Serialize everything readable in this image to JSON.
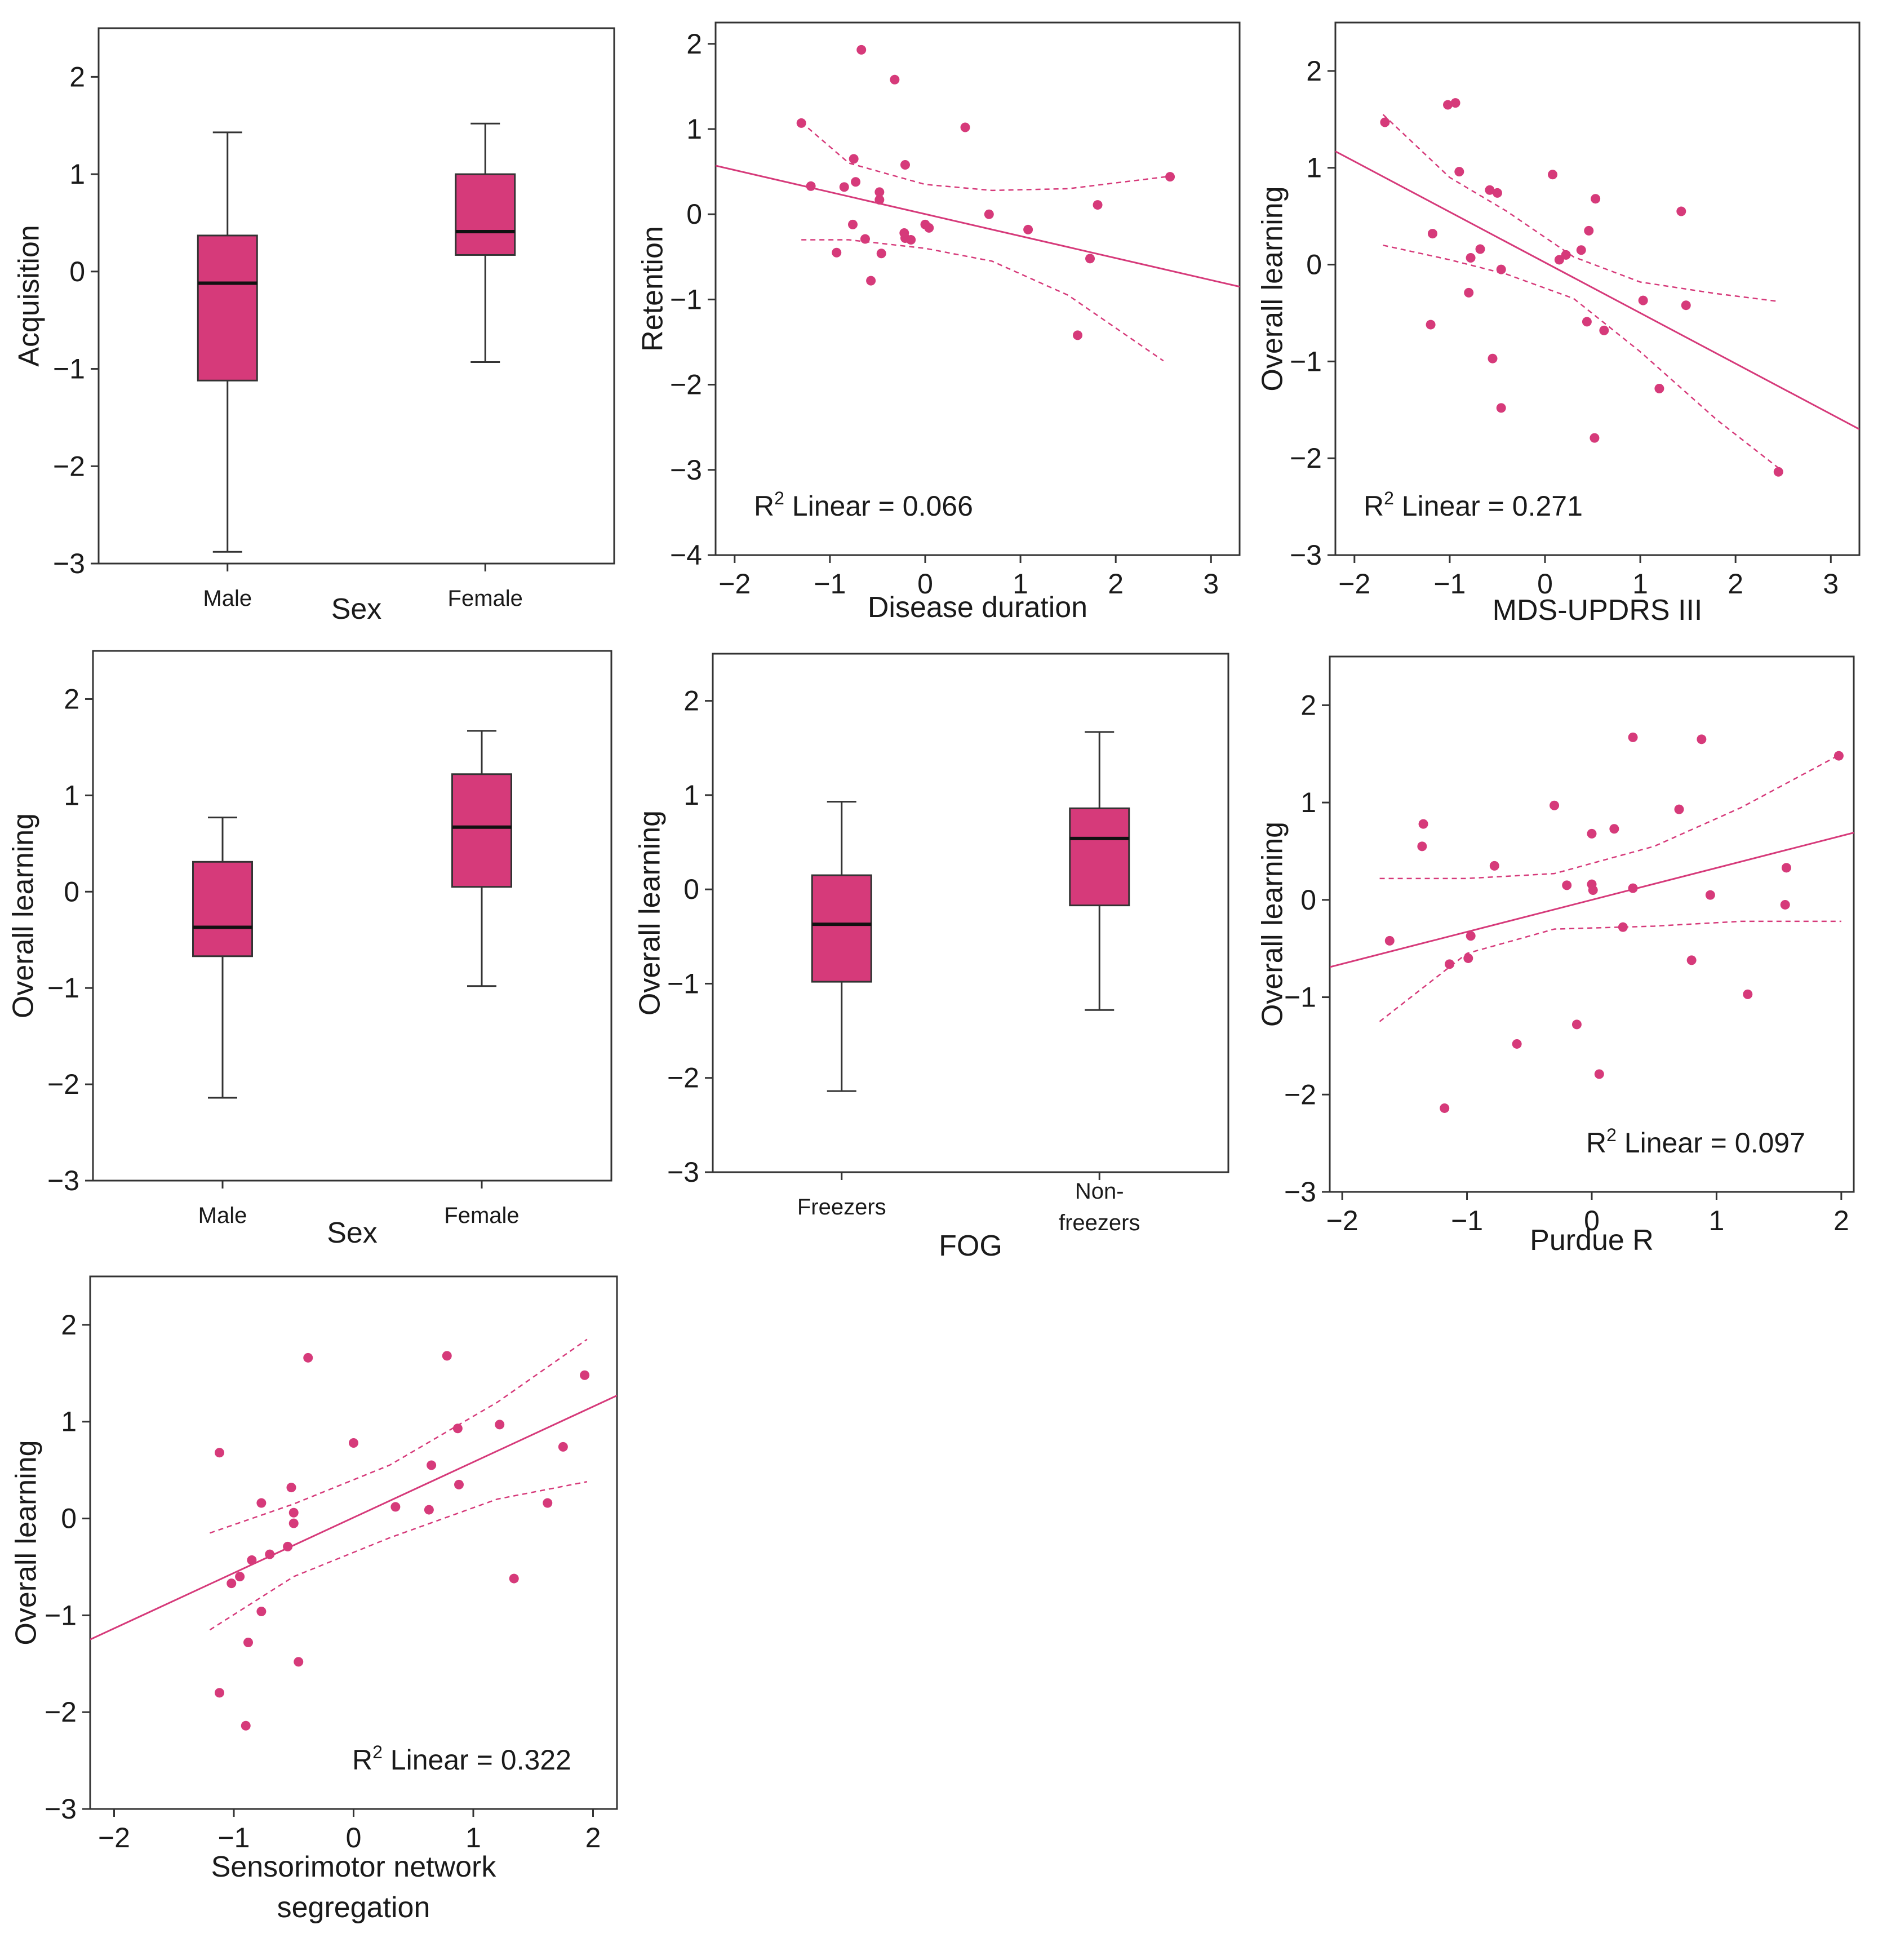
{
  "colors": {
    "accent": "#d63a7a",
    "box_fill": "#d63a7a",
    "stroke": "#333333"
  },
  "chart_data": [
    {
      "id": "p1",
      "type": "box",
      "categories": [
        "Male",
        "Female"
      ],
      "xlabel": "Sex",
      "ylabel": "Acquisition",
      "ylim": [
        -3,
        2.5
      ],
      "yticks": [
        -3,
        -2,
        -1,
        0,
        1,
        2
      ],
      "boxes": [
        {
          "whisker_low": -2.88,
          "q1": -1.12,
          "median": -0.12,
          "q3": 0.37,
          "whisker_high": 1.43
        },
        {
          "whisker_low": -0.93,
          "q1": 0.17,
          "median": 0.41,
          "q3": 1.0,
          "whisker_high": 1.52
        }
      ]
    },
    {
      "id": "p2",
      "type": "scatter",
      "xlabel": "Disease duration",
      "ylabel": "Retention",
      "xlim": [
        -2.2,
        3.3
      ],
      "ylim": [
        -4,
        2.25
      ],
      "xticks": [
        -2,
        -1,
        0,
        1,
        2,
        3
      ],
      "yticks": [
        -4,
        -3,
        -2,
        -1,
        0,
        1,
        2
      ],
      "r2_prefix": "R",
      "r2_sup": "2",
      "r2_text": " Linear = 0.066",
      "fit": [
        [
          -2.2,
          0.57
        ],
        [
          3.3,
          -0.85
        ]
      ],
      "ci_upper": [
        [
          -1.3,
          1.08
        ],
        [
          -0.8,
          0.6
        ],
        [
          0,
          0.35
        ],
        [
          0.7,
          0.28
        ],
        [
          1.5,
          0.3
        ],
        [
          2.6,
          0.45
        ]
      ],
      "ci_lower": [
        [
          -1.3,
          -0.3
        ],
        [
          -0.8,
          -0.3
        ],
        [
          0,
          -0.4
        ],
        [
          0.7,
          -0.55
        ],
        [
          1.5,
          -0.95
        ],
        [
          2.5,
          -1.72
        ]
      ],
      "points": [
        [
          -1.3,
          1.07
        ],
        [
          -1.2,
          0.33
        ],
        [
          -0.93,
          -0.45
        ],
        [
          -0.85,
          0.32
        ],
        [
          -0.75,
          0.65
        ],
        [
          -0.76,
          -0.12
        ],
        [
          -0.73,
          0.38
        ],
        [
          -0.67,
          1.93
        ],
        [
          -0.63,
          -0.29
        ],
        [
          -0.57,
          -0.78
        ],
        [
          -0.48,
          0.26
        ],
        [
          -0.48,
          0.17
        ],
        [
          -0.46,
          -0.46
        ],
        [
          -0.32,
          1.58
        ],
        [
          -0.21,
          0.58
        ],
        [
          -0.22,
          -0.22
        ],
        [
          -0.15,
          -0.3
        ],
        [
          -0.21,
          -0.28
        ],
        [
          0.0,
          -0.12
        ],
        [
          0.04,
          -0.16
        ],
        [
          0.42,
          1.02
        ],
        [
          0.67,
          0.0
        ],
        [
          1.08,
          -0.18
        ],
        [
          1.6,
          -1.42
        ],
        [
          1.73,
          -0.52
        ],
        [
          1.81,
          0.11
        ],
        [
          2.57,
          0.44
        ]
      ]
    },
    {
      "id": "p3",
      "type": "scatter",
      "xlabel": "MDS-UPDRS III",
      "ylabel": "Overall learning",
      "xlim": [
        -2.2,
        3.3
      ],
      "ylim": [
        -3,
        2.5
      ],
      "xticks": [
        -2,
        -1,
        0,
        1,
        2,
        3
      ],
      "yticks": [
        -3,
        -2,
        -1,
        0,
        1,
        2
      ],
      "r2_prefix": "R",
      "r2_sup": "2",
      "r2_text": " Linear = 0.271",
      "fit": [
        [
          -2.2,
          1.17
        ],
        [
          3.3,
          -1.7
        ]
      ],
      "ci_upper": [
        [
          -1.7,
          1.55
        ],
        [
          -1,
          0.9
        ],
        [
          -0.4,
          0.55
        ],
        [
          0.3,
          0.08
        ],
        [
          1,
          -0.18
        ],
        [
          1.8,
          -0.3
        ],
        [
          2.45,
          -0.38
        ]
      ],
      "ci_lower": [
        [
          -1.7,
          0.2
        ],
        [
          -1,
          0.05
        ],
        [
          -0.4,
          -0.1
        ],
        [
          0.3,
          -0.35
        ],
        [
          1,
          -0.9
        ],
        [
          1.8,
          -1.6
        ],
        [
          2.45,
          -2.1
        ]
      ],
      "points": [
        [
          -1.68,
          1.47
        ],
        [
          -1.18,
          0.32
        ],
        [
          -1.2,
          -0.62
        ],
        [
          -1.02,
          1.65
        ],
        [
          -0.94,
          1.67
        ],
        [
          -0.9,
          0.96
        ],
        [
          -0.8,
          -0.29
        ],
        [
          -0.78,
          0.07
        ],
        [
          -0.68,
          0.16
        ],
        [
          -0.58,
          0.77
        ],
        [
          -0.55,
          -0.97
        ],
        [
          -0.5,
          0.74
        ],
        [
          -0.46,
          -0.05
        ],
        [
          -0.46,
          -1.48
        ],
        [
          0.08,
          0.93
        ],
        [
          0.15,
          0.05
        ],
        [
          0.22,
          0.1
        ],
        [
          0.38,
          0.15
        ],
        [
          0.44,
          -0.59
        ],
        [
          0.46,
          0.35
        ],
        [
          0.52,
          -1.79
        ],
        [
          0.53,
          0.68
        ],
        [
          0.62,
          -0.68
        ],
        [
          1.03,
          -0.37
        ],
        [
          1.2,
          -1.28
        ],
        [
          1.43,
          0.55
        ],
        [
          1.48,
          -0.42
        ],
        [
          2.45,
          -2.14
        ]
      ]
    },
    {
      "id": "p4",
      "type": "box",
      "categories": [
        "Male",
        "Female"
      ],
      "xlabel": "Sex",
      "ylabel": "Overall learning",
      "ylim": [
        -3,
        2.5
      ],
      "yticks": [
        -3,
        -2,
        -1,
        0,
        1,
        2
      ],
      "boxes": [
        {
          "whisker_low": -2.14,
          "q1": -0.67,
          "median": -0.37,
          "q3": 0.31,
          "whisker_high": 0.77
        },
        {
          "whisker_low": -0.98,
          "q1": 0.05,
          "median": 0.67,
          "q3": 1.22,
          "whisker_high": 1.67
        }
      ]
    },
    {
      "id": "p5",
      "type": "box",
      "categories": [
        "Freezers",
        "Non-\nfreezers"
      ],
      "xlabel": "FOG",
      "ylabel": "Overall learning",
      "ylim": [
        -3,
        2.5
      ],
      "yticks": [
        -3,
        -2,
        -1,
        0,
        1,
        2
      ],
      "boxes": [
        {
          "whisker_low": -2.14,
          "q1": -0.98,
          "median": -0.37,
          "q3": 0.15,
          "whisker_high": 0.93
        },
        {
          "whisker_low": -1.28,
          "q1": -0.17,
          "median": 0.54,
          "q3": 0.86,
          "whisker_high": 1.67
        }
      ]
    },
    {
      "id": "p6",
      "type": "scatter",
      "xlabel": "Purdue R",
      "ylabel": "Overall learning",
      "xlim": [
        -2.1,
        2.1
      ],
      "ylim": [
        -3,
        2.5
      ],
      "xticks": [
        -2,
        -1,
        0,
        1,
        2
      ],
      "yticks": [
        -3,
        -2,
        -1,
        0,
        1,
        2
      ],
      "r2_prefix": "R",
      "r2_sup": "2",
      "r2_text": " Linear = 0.097",
      "fit": [
        [
          -2.1,
          -0.69
        ],
        [
          2.1,
          0.69
        ]
      ],
      "ci_upper": [
        [
          -1.7,
          0.22
        ],
        [
          -1,
          0.22
        ],
        [
          -0.3,
          0.27
        ],
        [
          0.5,
          0.55
        ],
        [
          1.2,
          0.95
        ],
        [
          2,
          1.5
        ]
      ],
      "ci_lower": [
        [
          -1.7,
          -1.25
        ],
        [
          -1,
          -0.55
        ],
        [
          -0.3,
          -0.3
        ],
        [
          0.5,
          -0.27
        ],
        [
          1.2,
          -0.22
        ],
        [
          2,
          -0.22
        ]
      ],
      "points": [
        [
          -1.62,
          -0.42
        ],
        [
          -1.35,
          0.78
        ],
        [
          -1.36,
          0.55
        ],
        [
          -1.18,
          -2.14
        ],
        [
          -1.14,
          -0.66
        ],
        [
          -0.97,
          -0.37
        ],
        [
          -0.99,
          -0.6
        ],
        [
          -0.78,
          0.35
        ],
        [
          -0.6,
          -1.48
        ],
        [
          -0.3,
          0.97
        ],
        [
          -0.2,
          0.15
        ],
        [
          -0.12,
          -1.28
        ],
        [
          0.0,
          0.68
        ],
        [
          0.0,
          0.16
        ],
        [
          0.01,
          0.1
        ],
        [
          0.06,
          -1.79
        ],
        [
          0.18,
          0.73
        ],
        [
          0.25,
          -0.28
        ],
        [
          0.33,
          0.12
        ],
        [
          0.33,
          1.67
        ],
        [
          0.7,
          0.93
        ],
        [
          0.8,
          -0.62
        ],
        [
          0.88,
          1.65
        ],
        [
          0.95,
          0.05
        ],
        [
          1.25,
          -0.97
        ],
        [
          1.55,
          -0.05
        ],
        [
          1.56,
          0.33
        ],
        [
          1.98,
          1.48
        ]
      ]
    },
    {
      "id": "p7",
      "type": "scatter",
      "xlabel": "Sensorimotor network\nsegregation",
      "ylabel": "Overall learning",
      "xlim": [
        -2.2,
        2.2
      ],
      "ylim": [
        -3,
        2.5
      ],
      "xticks": [
        -2,
        -1,
        0,
        1,
        2
      ],
      "yticks": [
        -3,
        -2,
        -1,
        0,
        1,
        2
      ],
      "r2_prefix": "R",
      "r2_sup": "2",
      "r2_text": " Linear = 0.322",
      "fit": [
        [
          -2.2,
          -1.25
        ],
        [
          2.2,
          1.27
        ]
      ],
      "ci_upper": [
        [
          -1.2,
          -0.15
        ],
        [
          -0.5,
          0.15
        ],
        [
          0.3,
          0.55
        ],
        [
          1.2,
          1.2
        ],
        [
          1.95,
          1.85
        ]
      ],
      "ci_lower": [
        [
          -1.2,
          -1.15
        ],
        [
          -0.5,
          -0.6
        ],
        [
          0.3,
          -0.2
        ],
        [
          1.2,
          0.2
        ],
        [
          1.95,
          0.38
        ]
      ],
      "points": [
        [
          -1.12,
          0.68
        ],
        [
          -1.12,
          -1.8
        ],
        [
          -1.02,
          -0.67
        ],
        [
          -0.95,
          -0.6
        ],
        [
          -0.88,
          -1.28
        ],
        [
          -0.9,
          -2.14
        ],
        [
          -0.85,
          -0.43
        ],
        [
          -0.77,
          -0.96
        ],
        [
          -0.77,
          0.16
        ],
        [
          -0.7,
          -0.37
        ],
        [
          -0.55,
          -0.29
        ],
        [
          -0.52,
          0.32
        ],
        [
          -0.5,
          0.06
        ],
        [
          -0.5,
          -0.05
        ],
        [
          -0.46,
          -1.48
        ],
        [
          -0.38,
          1.66
        ],
        [
          0.0,
          0.78
        ],
        [
          0.35,
          0.12
        ],
        [
          0.63,
          0.09
        ],
        [
          0.65,
          0.55
        ],
        [
          0.78,
          1.68
        ],
        [
          0.87,
          0.93
        ],
        [
          0.88,
          0.35
        ],
        [
          1.22,
          0.97
        ],
        [
          1.34,
          -0.62
        ],
        [
          1.62,
          0.16
        ],
        [
          1.75,
          0.74
        ],
        [
          1.93,
          1.48
        ]
      ]
    }
  ]
}
